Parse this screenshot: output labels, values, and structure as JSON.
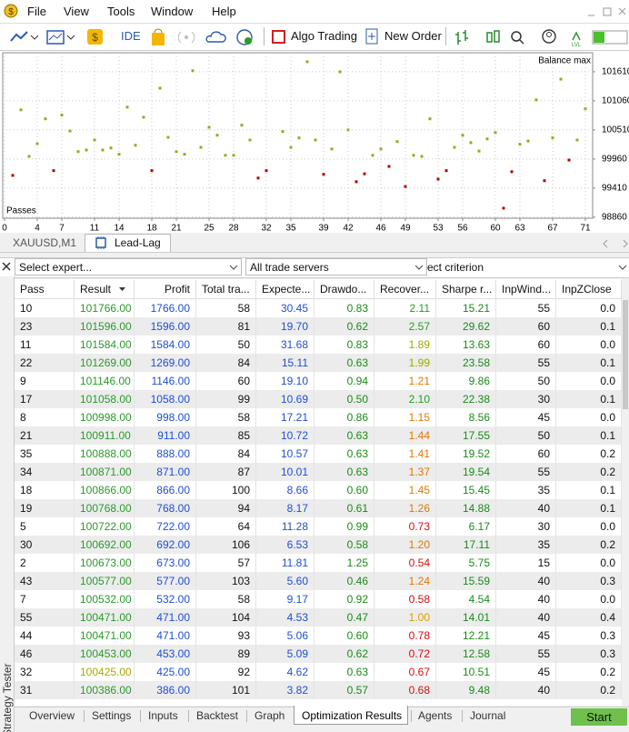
{
  "menu": [
    "File",
    "View",
    "Tools",
    "Window",
    "Help"
  ],
  "toolbar": {
    "ide": "IDE",
    "algo_trading": "Algo Trading",
    "new_order": "New Order"
  },
  "chart": {
    "type": "scatter",
    "label_top": "Balance max",
    "label_bottom": "Passes",
    "xlim": [
      0,
      71
    ],
    "xticks": [
      0,
      4,
      7,
      11,
      14,
      18,
      21,
      25,
      28,
      32,
      35,
      39,
      42,
      46,
      49,
      53,
      56,
      60,
      63,
      67,
      71
    ],
    "ylim": [
      98840,
      101970
    ],
    "yticks": [
      101610,
      101060,
      100510,
      99960,
      99410,
      98860
    ],
    "grid": true,
    "series": [
      {
        "color": "#9aa81e",
        "x": [
          2,
          3,
          4,
          5,
          7,
          8,
          9,
          10,
          11,
          12,
          13,
          14,
          15,
          16,
          17,
          19,
          20,
          21,
          22,
          23,
          24,
          25,
          26,
          27,
          28,
          29,
          30,
          34,
          35,
          36,
          37,
          38,
          40,
          41,
          42,
          45,
          46,
          48,
          50,
          51,
          52,
          55,
          56,
          57,
          58,
          59,
          60,
          63,
          64,
          65,
          67,
          68,
          70,
          71
        ],
        "values": [
          100890,
          100010,
          100250,
          100720,
          100790,
          100490,
          100100,
          100130,
          100320,
          100130,
          100170,
          100050,
          100940,
          100220,
          100750,
          101300,
          100370,
          100100,
          100050,
          101630,
          100180,
          100560,
          100410,
          100030,
          100030,
          100600,
          100320,
          100480,
          100180,
          100360,
          101800,
          100320,
          100150,
          101610,
          100510,
          100030,
          100150,
          100290,
          100030,
          100010,
          100720,
          100180,
          100410,
          100270,
          100110,
          100340,
          100460,
          100240,
          100300,
          101080,
          100360,
          101470,
          100320,
          100910
        ]
      },
      {
        "color": "#b40000",
        "x": [
          1,
          6,
          18,
          31,
          32,
          39,
          43,
          44,
          47,
          49,
          53,
          54,
          61,
          62,
          66,
          69
        ],
        "values": [
          99650,
          99740,
          99740,
          99600,
          99740,
          99670,
          99530,
          99680,
          99820,
          99440,
          99580,
          99740,
          99030,
          99720,
          99550,
          99940
        ]
      }
    ]
  },
  "chart_tabs": [
    "XAUUSD,M1",
    "Lead-Lag"
  ],
  "filters": [
    "Select expert...",
    "All trade servers",
    "ect criterion"
  ],
  "table": {
    "columns": [
      "Pass",
      "Result",
      "Profit",
      "Total tra...",
      "Expecte...",
      "Drawdo...",
      "Recover...",
      "Sharpe r...",
      "InpWind...",
      "InpZClose"
    ],
    "column_colors": [
      "#111111",
      "#2a9a2a",
      "#1f4fd0",
      "#111111",
      "#1f4fd0",
      "#1a8a1a",
      "#1a8a1a",
      "#1a8a1a",
      "#111111",
      "#111111"
    ],
    "rows": [
      [
        "10",
        "101766.00",
        "1766.00",
        "58",
        "30.45",
        "0.83",
        "2.11",
        "15.21",
        "55",
        "0.0"
      ],
      [
        "23",
        "101596.00",
        "1596.00",
        "81",
        "19.70",
        "0.62",
        "2.57",
        "29.62",
        "60",
        "0.1"
      ],
      [
        "11",
        "101584.00",
        "1584.00",
        "50",
        "31.68",
        "0.83",
        "1.89",
        "13.63",
        "60",
        "0.0"
      ],
      [
        "22",
        "101269.00",
        "1269.00",
        "84",
        "15.11",
        "0.63",
        "1.99",
        "23.58",
        "55",
        "0.1"
      ],
      [
        "9",
        "101146.00",
        "1146.00",
        "60",
        "19.10",
        "0.94",
        "1.21",
        "9.86",
        "50",
        "0.0"
      ],
      [
        "17",
        "101058.00",
        "1058.00",
        "99",
        "10.69",
        "0.50",
        "2.10",
        "22.38",
        "30",
        "0.1"
      ],
      [
        "8",
        "100998.00",
        "998.00",
        "58",
        "17.21",
        "0.86",
        "1.15",
        "8.56",
        "45",
        "0.0"
      ],
      [
        "21",
        "100911.00",
        "911.00",
        "85",
        "10.72",
        "0.63",
        "1.44",
        "17.55",
        "50",
        "0.1"
      ],
      [
        "35",
        "100888.00",
        "888.00",
        "84",
        "10.57",
        "0.63",
        "1.41",
        "19.52",
        "60",
        "0.2"
      ],
      [
        "34",
        "100871.00",
        "871.00",
        "87",
        "10.01",
        "0.63",
        "1.37",
        "19.54",
        "55",
        "0.2"
      ],
      [
        "18",
        "100866.00",
        "866.00",
        "100",
        "8.66",
        "0.60",
        "1.45",
        "15.45",
        "35",
        "0.1"
      ],
      [
        "19",
        "100768.00",
        "768.00",
        "94",
        "8.17",
        "0.61",
        "1.26",
        "14.88",
        "40",
        "0.1"
      ],
      [
        "5",
        "100722.00",
        "722.00",
        "64",
        "11.28",
        "0.99",
        "0.73",
        "6.17",
        "30",
        "0.0"
      ],
      [
        "30",
        "100692.00",
        "692.00",
        "106",
        "6.53",
        "0.58",
        "1.20",
        "17.11",
        "35",
        "0.2"
      ],
      [
        "2",
        "100673.00",
        "673.00",
        "57",
        "11.81",
        "1.25",
        "0.54",
        "5.75",
        "15",
        "0.0"
      ],
      [
        "43",
        "100577.00",
        "577.00",
        "103",
        "5.60",
        "0.46",
        "1.24",
        "15.59",
        "40",
        "0.3"
      ],
      [
        "7",
        "100532.00",
        "532.00",
        "58",
        "9.17",
        "0.92",
        "0.58",
        "4.54",
        "40",
        "0.0"
      ],
      [
        "55",
        "100471.00",
        "471.00",
        "104",
        "4.53",
        "0.47",
        "1.00",
        "14.01",
        "40",
        "0.4"
      ],
      [
        "44",
        "100471.00",
        "471.00",
        "93",
        "5.06",
        "0.60",
        "0.78",
        "12.21",
        "45",
        "0.3"
      ],
      [
        "46",
        "100453.00",
        "453.00",
        "89",
        "5.09",
        "0.62",
        "0.72",
        "12.58",
        "55",
        "0.3"
      ],
      [
        "32",
        "100425.00",
        "425.00",
        "92",
        "4.62",
        "0.63",
        "0.67",
        "10.51",
        "45",
        "0.2"
      ],
      [
        "31",
        "100386.00",
        "386.00",
        "101",
        "3.82",
        "0.57",
        "0.68",
        "9.48",
        "40",
        "0.2"
      ]
    ],
    "result_colors": [
      "#2a9a2a",
      "#2a9a2a",
      "#2a9a2a",
      "#2a9a2a",
      "#2a9a2a",
      "#2a9a2a",
      "#2a9a2a",
      "#2a9a2a",
      "#2a9a2a",
      "#2a9a2a",
      "#2a9a2a",
      "#2a9a2a",
      "#2a9a2a",
      "#2a9a2a",
      "#2a9a2a",
      "#2a9a2a",
      "#2a9a2a",
      "#2a9a2a",
      "#2a9a2a",
      "#2a9a2a",
      "#a8a800",
      "#2a9a2a"
    ],
    "recovery_colors": [
      "#22a022",
      "#22a022",
      "#a0a800",
      "#a0a800",
      "#e07800",
      "#22a022",
      "#e07800",
      "#e07800",
      "#e07800",
      "#e07800",
      "#e07800",
      "#e07800",
      "#d01010",
      "#e07800",
      "#d01010",
      "#e07800",
      "#d01010",
      "#d4a000",
      "#d01010",
      "#d01010",
      "#d01010",
      "#d01010"
    ]
  },
  "bottom_tabs": [
    "Overview",
    "Settings",
    "Inputs",
    "Backtest",
    "Graph",
    "Optimization Results",
    "Agents",
    "Journal"
  ],
  "side_label": "Strategy Tester",
  "start_button": "Start"
}
